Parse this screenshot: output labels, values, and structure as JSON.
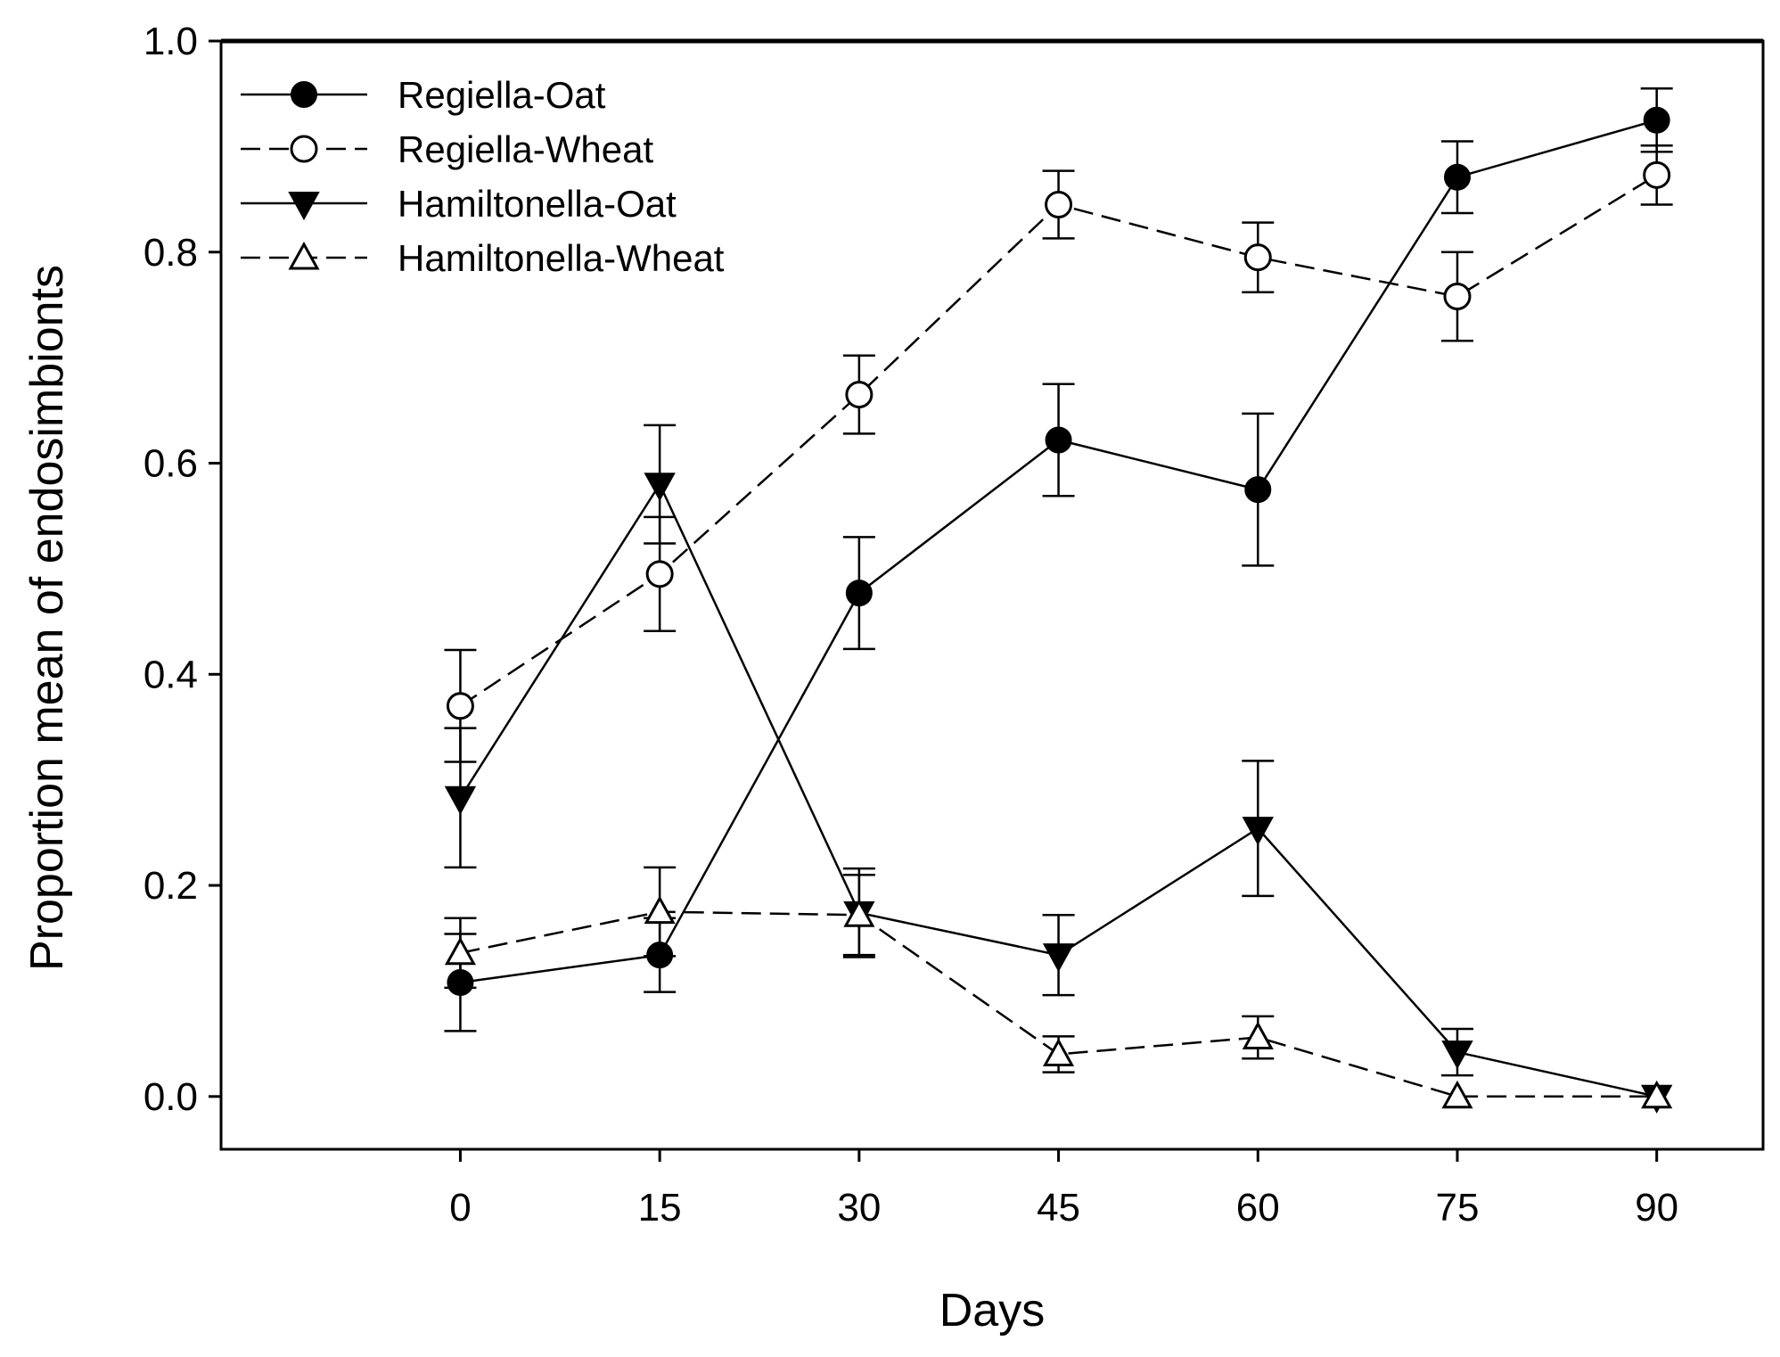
{
  "chart_data": {
    "type": "line",
    "title": "",
    "xlabel": "Days",
    "ylabel": "Proportion mean of endosimbionts",
    "x": [
      0,
      15,
      30,
      45,
      60,
      75,
      90
    ],
    "x_tick_labels": [
      "0",
      "15",
      "30",
      "45",
      "60",
      "75",
      "90"
    ],
    "xlim": [
      -18,
      98
    ],
    "ylim": [
      -0.05,
      1.0
    ],
    "y_ticks": [
      0.0,
      0.2,
      0.4,
      0.6,
      0.8,
      1.0
    ],
    "y_tick_labels": [
      "0.0",
      "0.2",
      "0.4",
      "0.6",
      "0.8",
      "1.0"
    ],
    "grid": false,
    "legend_position": "top-left",
    "series": [
      {
        "name": "Regiella-Oat",
        "marker": "circle-filled",
        "line": "solid",
        "values": [
          0.108,
          0.134,
          0.477,
          0.622,
          0.575,
          0.871,
          0.925
        ],
        "errors": [
          0.046,
          0.035,
          0.053,
          0.053,
          0.072,
          0.034,
          0.03
        ]
      },
      {
        "name": "Regiella-Wheat",
        "marker": "circle-open",
        "line": "dashed",
        "values": [
          0.37,
          0.495,
          0.665,
          0.845,
          0.795,
          0.758,
          0.873
        ],
        "errors": [
          0.053,
          0.054,
          0.037,
          0.032,
          0.033,
          0.042,
          0.028
        ]
      },
      {
        "name": "Hamiltonella-Oat",
        "marker": "triangle-down-filled",
        "line": "solid",
        "values": [
          0.283,
          0.58,
          0.174,
          0.134,
          0.254,
          0.042,
          0.0
        ],
        "errors": [
          0.066,
          0.056,
          0.042,
          0.038,
          0.064,
          0.022,
          0.0
        ]
      },
      {
        "name": "Hamiltonella-Wheat",
        "marker": "triangle-up-open",
        "line": "dashed",
        "values": [
          0.136,
          0.175,
          0.172,
          0.04,
          0.056,
          0.0,
          0.0
        ],
        "errors": [
          0.033,
          0.042,
          0.038,
          0.017,
          0.02,
          0.0,
          0.0
        ]
      }
    ]
  }
}
